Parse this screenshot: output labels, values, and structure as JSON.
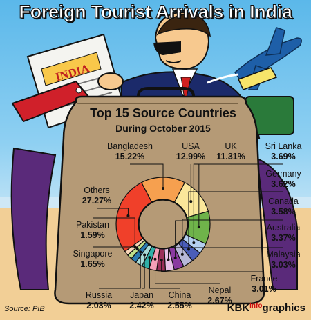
{
  "headline": "Foreign Tourist Arrivals in India",
  "newspaper_text": "INDIA",
  "chart_data": {
    "type": "pie",
    "title": "Top 15 Source Countries",
    "subtitle": "During October 2015",
    "slices": [
      {
        "label": "Bangladesh",
        "value": 15.22,
        "value_text": "15.22%",
        "color": "#f6a04f"
      },
      {
        "label": "USA",
        "value": 12.99,
        "value_text": "12.99%",
        "color": "#fbe79a"
      },
      {
        "label": "UK",
        "value": 11.31,
        "value_text": "11.31%",
        "color": "#6fb34a"
      },
      {
        "label": "Sri Lanka",
        "value": 3.69,
        "value_text": "3.69%",
        "color": "#b4cff0"
      },
      {
        "label": "Germany",
        "value": 3.62,
        "value_text": "3.62%",
        "color": "#4a5db8"
      },
      {
        "label": "Canada",
        "value": 3.58,
        "value_text": "3.58%",
        "color": "#b8b8d8"
      },
      {
        "label": "Australia",
        "value": 3.37,
        "value_text": "3.37%",
        "color": "#8a3aa0"
      },
      {
        "label": "Malaysia",
        "value": 3.03,
        "value_text": "3.03%",
        "color": "#e8c2e8"
      },
      {
        "label": "France",
        "value": 3.01,
        "value_text": "3.01%",
        "color": "#9a2f5a"
      },
      {
        "label": "Nepal",
        "value": 2.67,
        "value_text": "2.67%",
        "color": "#f4a0b8"
      },
      {
        "label": "China",
        "value": 2.55,
        "value_text": "2.55%",
        "color": "#2fb0a8"
      },
      {
        "label": "Japan",
        "value": 2.42,
        "value_text": "2.42%",
        "color": "#a8dcd8"
      },
      {
        "label": "Russia",
        "value": 2.03,
        "value_text": "2.03%",
        "color": "#2a7ab0"
      },
      {
        "label": "Singapore",
        "value": 1.65,
        "value_text": "1.65%",
        "color": "#bfe08a"
      },
      {
        "label": "Pakistan",
        "value": 1.59,
        "value_text": "1.59%",
        "color": "#f8d6b8"
      },
      {
        "label": "Others",
        "value": 27.27,
        "value_text": "27.27%",
        "color": "#f0402a"
      }
    ]
  },
  "source": "Source: PIB",
  "credit": {
    "part1": "KBK",
    "part2": "Info",
    "part3": "graphics"
  }
}
